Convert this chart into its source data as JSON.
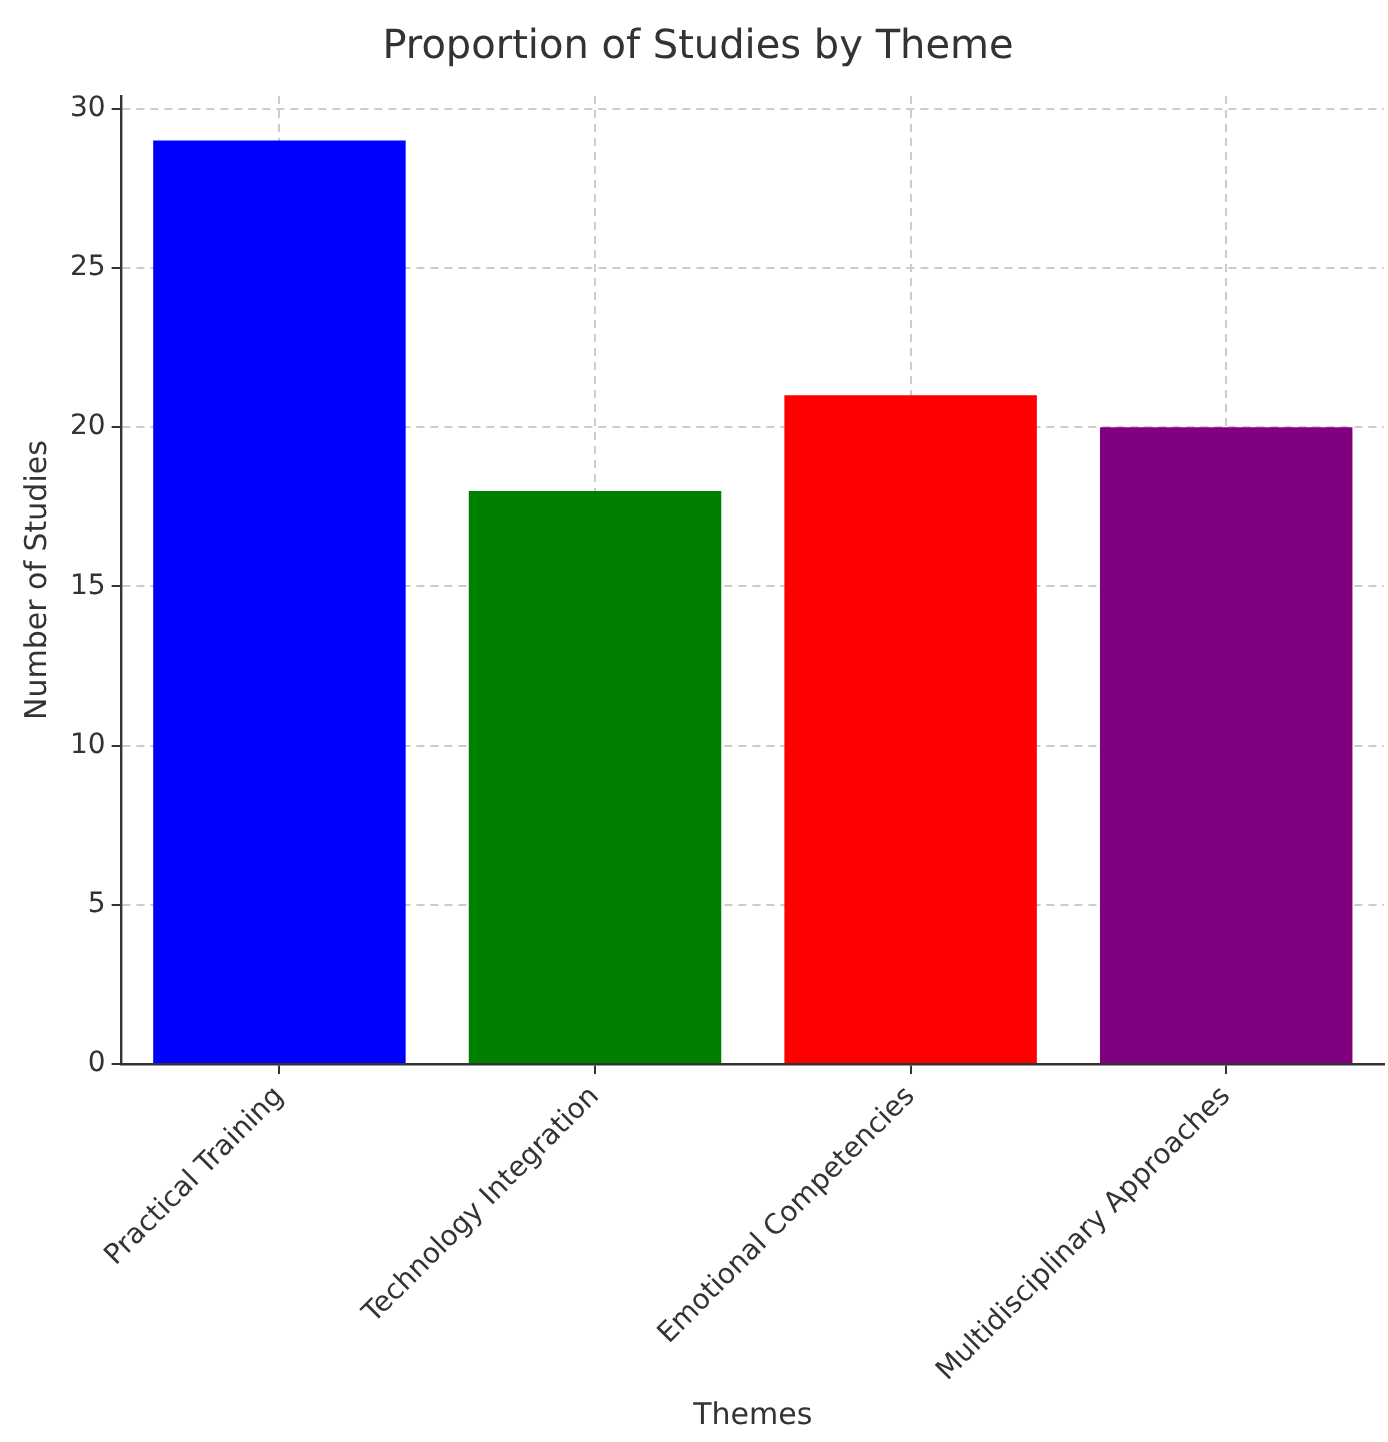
{
  "chart_data": {
    "type": "bar",
    "title": "Proportion of Studies by Theme",
    "xlabel": "Themes",
    "ylabel": "Number of Studies",
    "categories": [
      "Practical Training",
      "Technology Integration",
      "Emotional Competencies",
      "Multidisciplinary Approaches"
    ],
    "values": [
      29,
      18,
      21,
      20
    ],
    "colors": [
      "#0000ff",
      "#008000",
      "#ff0000",
      "#800080"
    ],
    "ylim": [
      0,
      30.4
    ],
    "yticks": [
      0,
      5,
      10,
      15,
      20,
      25,
      30
    ],
    "grid": true
  }
}
